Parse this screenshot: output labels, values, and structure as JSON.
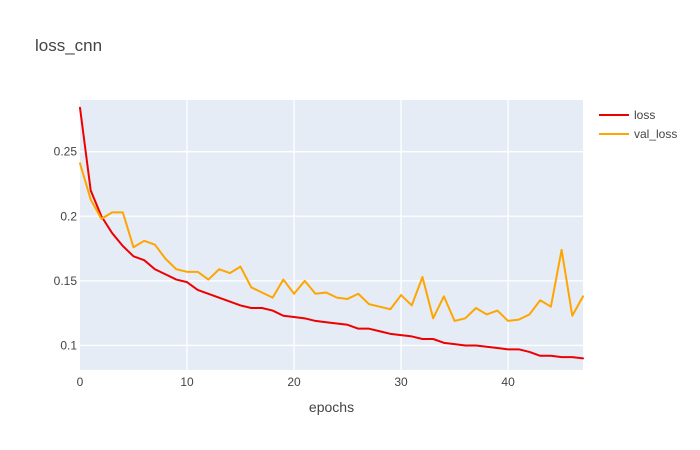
{
  "chart_data": {
    "type": "line",
    "title": "loss_cnn",
    "xlabel": "epochs",
    "ylabel": "",
    "xlim": [
      0,
      47
    ],
    "ylim": [
      0.081,
      0.29
    ],
    "x_ticks": [
      0,
      10,
      20,
      30,
      40
    ],
    "x_tick_labels": [
      "0",
      "10",
      "20",
      "30",
      "40"
    ],
    "y_ticks": [
      0.1,
      0.15,
      0.2,
      0.25
    ],
    "y_tick_labels": [
      "0.1",
      "0.15",
      "0.2",
      "0.25"
    ],
    "grid": true,
    "plot_background": "#e5ecf6",
    "legend_position": "top-right",
    "x": [
      0,
      1,
      2,
      3,
      4,
      5,
      6,
      7,
      8,
      9,
      10,
      11,
      12,
      13,
      14,
      15,
      16,
      17,
      18,
      19,
      20,
      21,
      22,
      23,
      24,
      25,
      26,
      27,
      28,
      29,
      30,
      31,
      32,
      33,
      34,
      35,
      36,
      37,
      38,
      39,
      40,
      41,
      42,
      43,
      44,
      45,
      46,
      47
    ],
    "series": [
      {
        "name": "loss",
        "color": "#ee0000",
        "values": [
          0.284,
          0.22,
          0.2,
          0.187,
          0.177,
          0.169,
          0.166,
          0.159,
          0.155,
          0.151,
          0.149,
          0.143,
          0.14,
          0.137,
          0.134,
          0.131,
          0.129,
          0.129,
          0.127,
          0.123,
          0.122,
          0.121,
          0.119,
          0.118,
          0.117,
          0.116,
          0.113,
          0.113,
          0.111,
          0.109,
          0.108,
          0.107,
          0.105,
          0.105,
          0.102,
          0.101,
          0.1,
          0.1,
          0.099,
          0.098,
          0.097,
          0.097,
          0.095,
          0.092,
          0.092,
          0.091,
          0.091,
          0.09
        ]
      },
      {
        "name": "val_loss",
        "color": "#ffa500",
        "values": [
          0.241,
          0.213,
          0.198,
          0.203,
          0.203,
          0.176,
          0.181,
          0.178,
          0.167,
          0.159,
          0.157,
          0.157,
          0.151,
          0.159,
          0.156,
          0.161,
          0.145,
          0.141,
          0.137,
          0.151,
          0.14,
          0.15,
          0.14,
          0.141,
          0.137,
          0.136,
          0.14,
          0.132,
          0.13,
          0.128,
          0.139,
          0.131,
          0.153,
          0.121,
          0.138,
          0.119,
          0.121,
          0.129,
          0.124,
          0.127,
          0.119,
          0.12,
          0.124,
          0.135,
          0.13,
          0.174,
          0.123,
          0.138
        ]
      }
    ]
  }
}
